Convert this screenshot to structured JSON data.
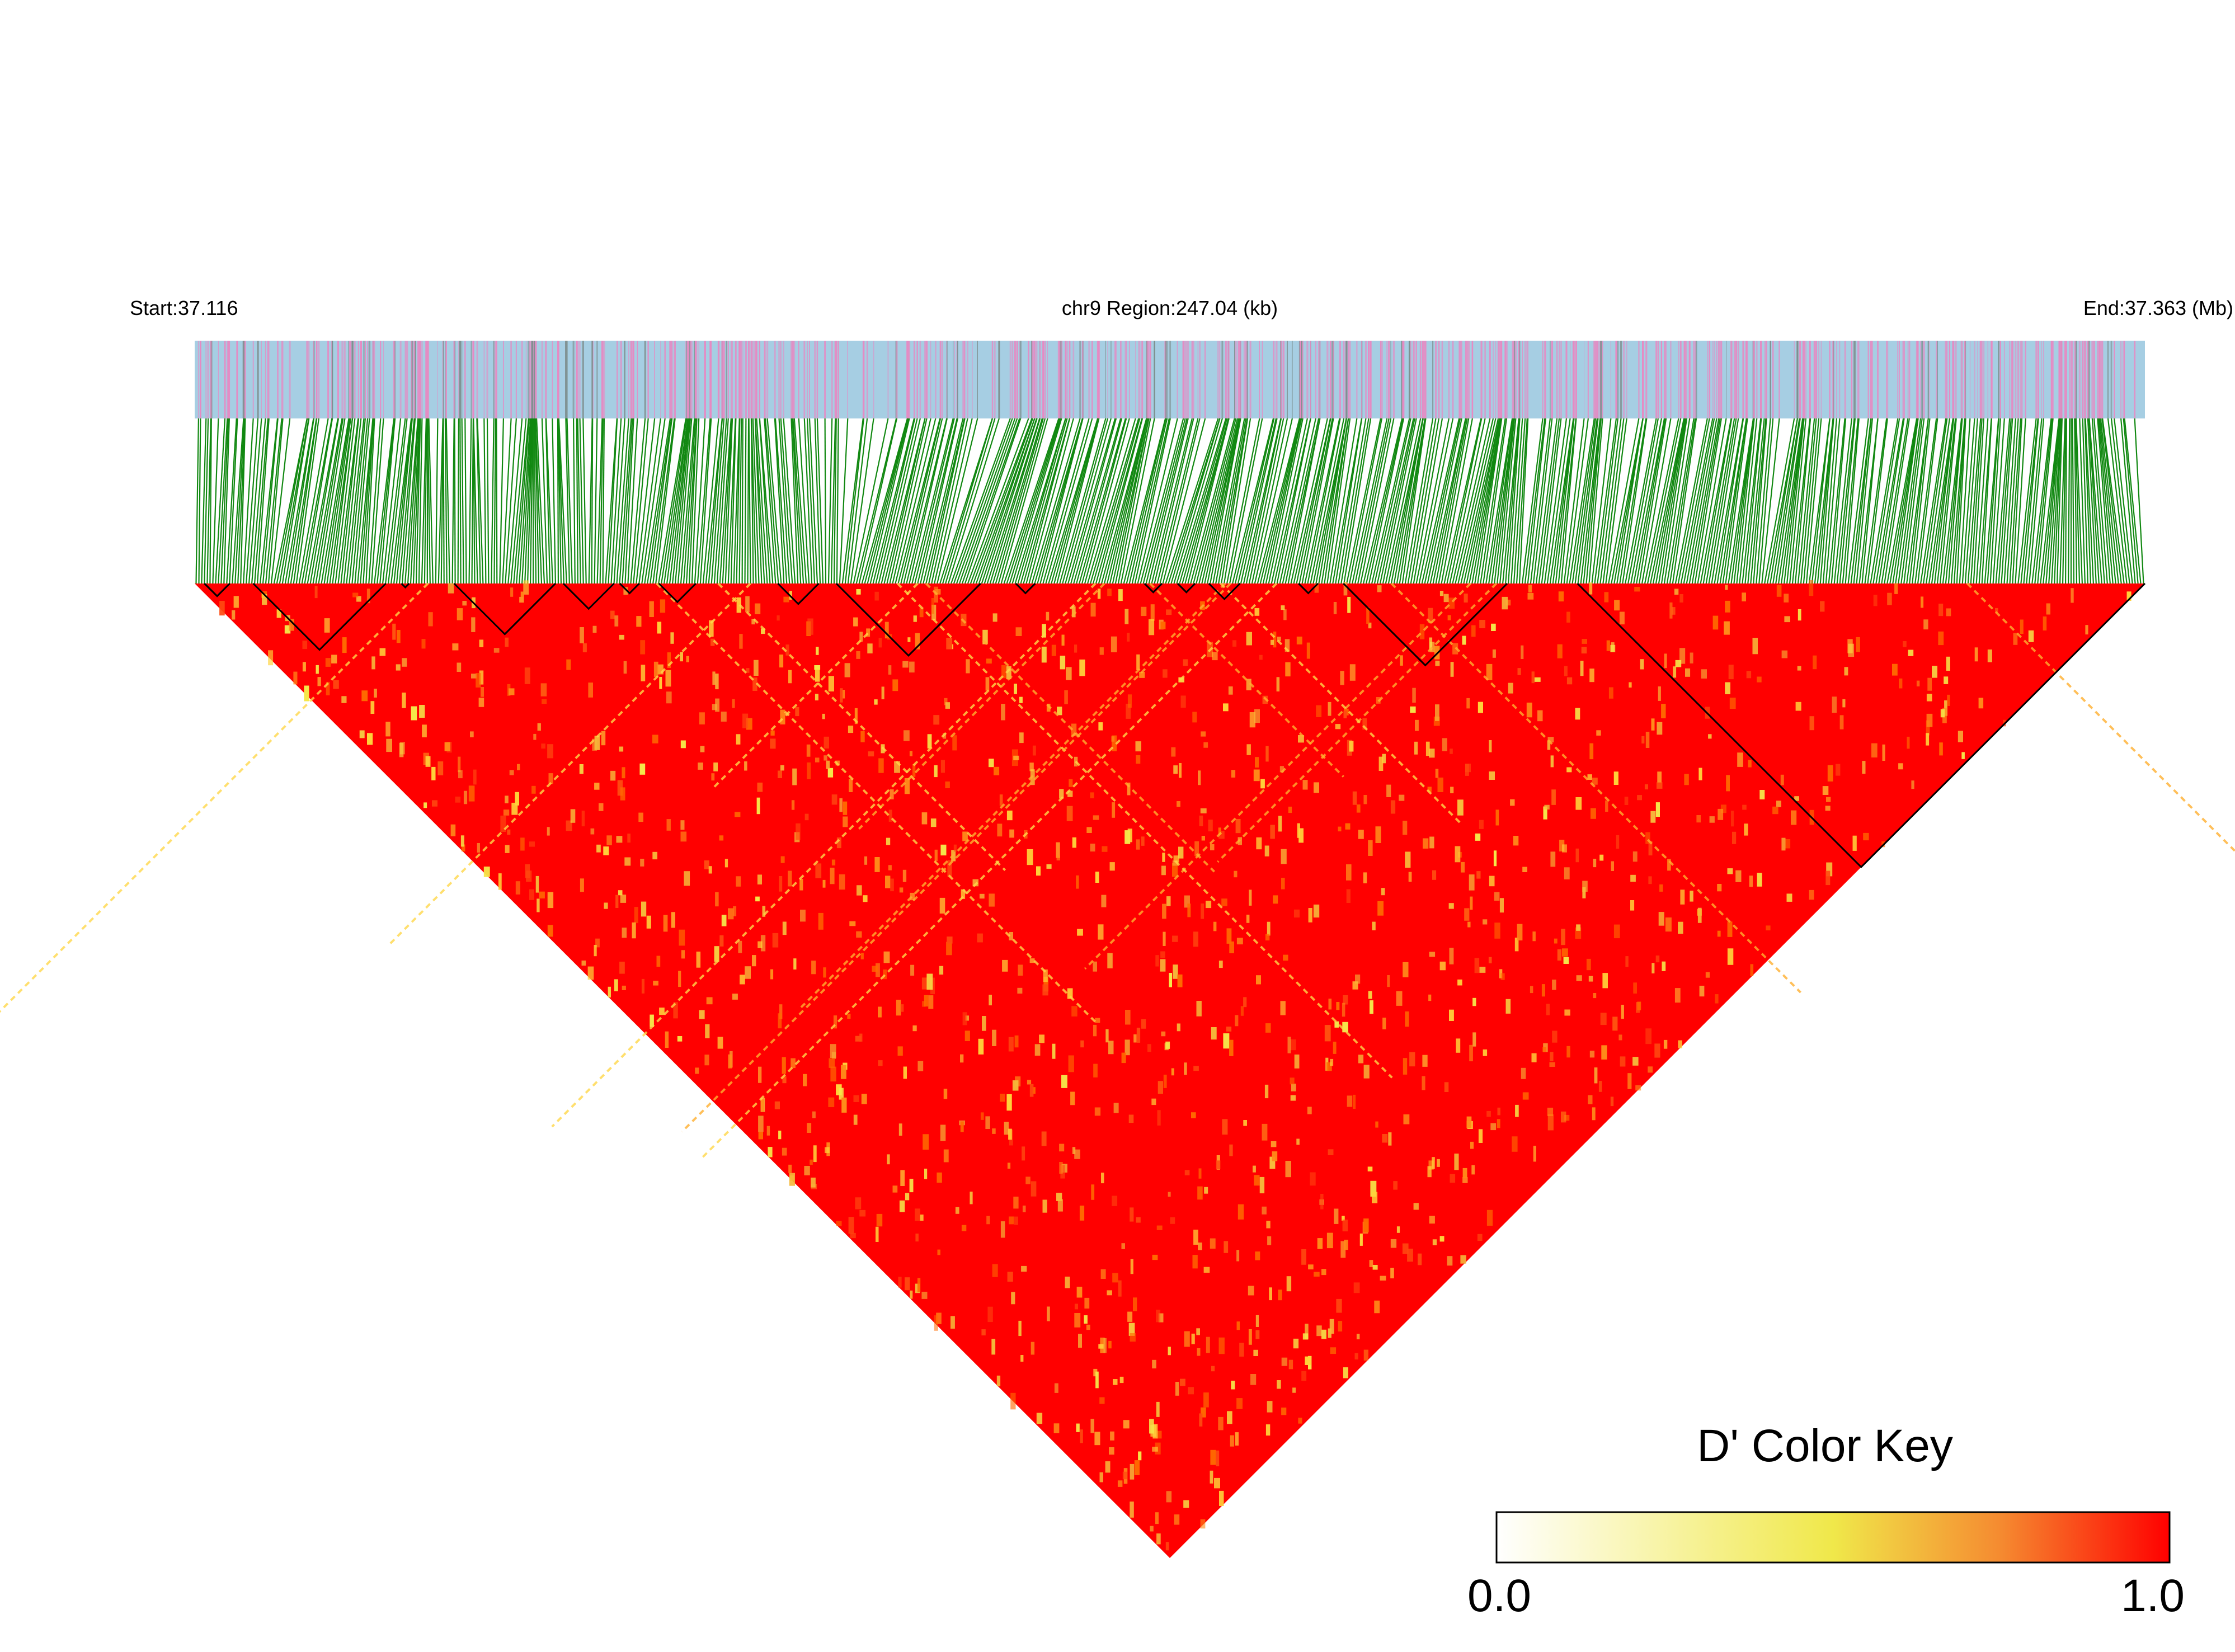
{
  "header": {
    "start_label": "Start:37.116",
    "region_label": "chr9 Region:247.04 (kb)",
    "end_label": "End:37.363 (Mb)"
  },
  "colors": {
    "track_base": "#a6cee3",
    "track_pink": "#e78ac3",
    "track_gray": "#7f8f8f",
    "connector_line": "#118811",
    "ld_high": "#ff0000",
    "ld_mid": "#f5e84a",
    "block_outline": "#000000"
  },
  "chart_data": {
    "type": "heatmap",
    "title": "",
    "subtitle": "",
    "metric": "D'",
    "chromosome": "chr9",
    "region_start_mb": 37.116,
    "region_end_mb": 37.363,
    "region_length_kb": 247.04,
    "dominant_value": 1.0,
    "color_key": {
      "title": "D' Color Key",
      "min_label": "0.0",
      "max_label": "1.0",
      "min": 0.0,
      "max": 1.0,
      "stops": [
        {
          "value": 0.0,
          "color": "#ffffff"
        },
        {
          "value": 0.5,
          "color": "#f0e84a"
        },
        {
          "value": 0.75,
          "color": "#f58a30"
        },
        {
          "value": 1.0,
          "color": "#ff0000"
        }
      ]
    },
    "haplotype_blocks": [
      {
        "start_fraction": 0.005,
        "end_fraction": 0.018
      },
      {
        "start_fraction": 0.03,
        "end_fraction": 0.098
      },
      {
        "start_fraction": 0.106,
        "end_fraction": 0.11
      },
      {
        "start_fraction": 0.133,
        "end_fraction": 0.185
      },
      {
        "start_fraction": 0.189,
        "end_fraction": 0.215
      },
      {
        "start_fraction": 0.218,
        "end_fraction": 0.228
      },
      {
        "start_fraction": 0.238,
        "end_fraction": 0.257
      },
      {
        "start_fraction": 0.299,
        "end_fraction": 0.32
      },
      {
        "start_fraction": 0.329,
        "end_fraction": 0.403
      },
      {
        "start_fraction": 0.421,
        "end_fraction": 0.431
      },
      {
        "start_fraction": 0.487,
        "end_fraction": 0.496
      },
      {
        "start_fraction": 0.504,
        "end_fraction": 0.513
      },
      {
        "start_fraction": 0.52,
        "end_fraction": 0.536
      },
      {
        "start_fraction": 0.566,
        "end_fraction": 0.576
      },
      {
        "start_fraction": 0.589,
        "end_fraction": 0.673
      },
      {
        "start_fraction": 0.709,
        "end_fraction": 1.0
      }
    ]
  }
}
